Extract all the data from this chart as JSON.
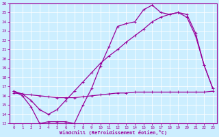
{
  "xlabel": "Windchill (Refroidissement éolien,°C)",
  "xlim": [
    -0.5,
    23.5
  ],
  "ylim": [
    13,
    26
  ],
  "xticks": [
    0,
    1,
    2,
    3,
    4,
    5,
    6,
    7,
    8,
    9,
    10,
    11,
    12,
    13,
    14,
    15,
    16,
    17,
    18,
    19,
    20,
    21,
    22,
    23
  ],
  "yticks": [
    13,
    14,
    15,
    16,
    17,
    18,
    19,
    20,
    21,
    22,
    23,
    24,
    25,
    26
  ],
  "color": "#990099",
  "bg_color": "#cceeff",
  "line1_x": [
    0,
    1,
    2,
    3,
    4,
    5,
    6,
    7,
    8,
    9,
    10,
    11,
    12,
    13,
    14,
    15,
    16,
    17,
    18,
    19,
    20,
    21,
    22,
    23
  ],
  "line1_y": [
    16.3,
    16.2,
    16.1,
    16.0,
    15.9,
    15.8,
    15.8,
    15.8,
    15.9,
    16.0,
    16.1,
    16.2,
    16.3,
    16.3,
    16.4,
    16.4,
    16.4,
    16.4,
    16.4,
    16.4,
    16.4,
    16.4,
    16.4,
    16.5
  ],
  "line2_x": [
    0,
    1,
    2,
    3,
    4,
    5,
    6,
    7,
    8,
    9,
    10,
    11,
    12,
    13,
    14,
    15,
    16,
    17,
    18,
    19,
    20,
    21,
    22,
    23
  ],
  "line2_y": [
    16.5,
    16.0,
    14.8,
    13.0,
    13.2,
    13.2,
    13.2,
    13.0,
    15.0,
    16.8,
    19.2,
    21.3,
    23.5,
    23.8,
    24.0,
    25.3,
    25.8,
    25.0,
    24.8,
    25.0,
    24.5,
    22.5,
    19.3,
    16.8
  ],
  "line3_x": [
    0,
    1,
    2,
    3,
    4,
    5,
    6,
    7,
    8,
    9,
    10,
    11,
    12,
    13,
    14,
    15,
    16,
    17,
    18,
    19,
    20,
    21,
    22,
    23
  ],
  "line3_y": [
    16.5,
    16.2,
    15.5,
    14.5,
    14.0,
    14.5,
    15.5,
    16.5,
    17.5,
    18.5,
    19.5,
    20.3,
    21.0,
    21.8,
    22.5,
    23.2,
    24.0,
    24.5,
    24.8,
    25.0,
    24.8,
    22.8,
    19.3,
    16.8
  ]
}
